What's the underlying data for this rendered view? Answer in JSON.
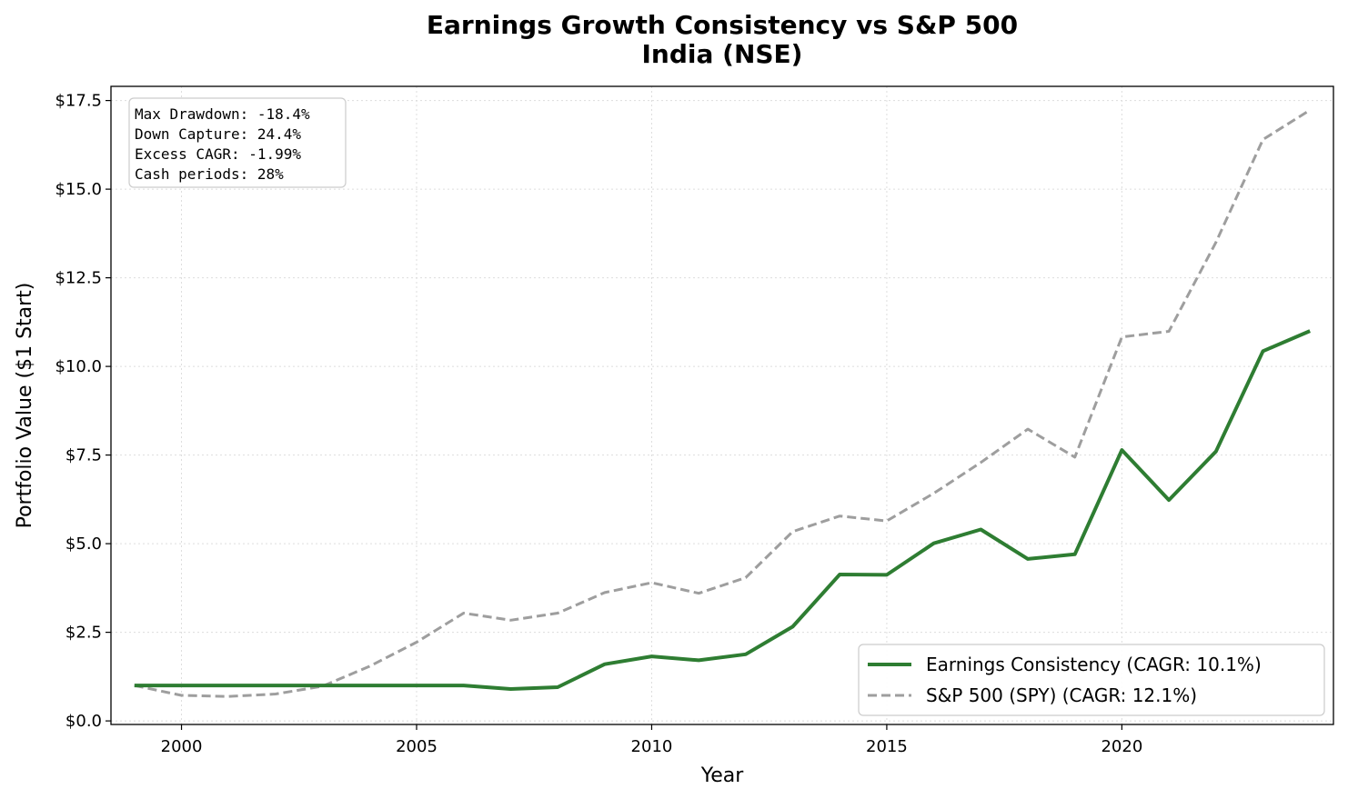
{
  "chart_data": {
    "type": "line",
    "title": "Earnings Growth Consistency vs S&P 500",
    "subtitle": "India (NSE)",
    "xlabel": "Year",
    "ylabel": "Portfolio Value ($1 Start)",
    "xlim": [
      1998.5,
      2024.5
    ],
    "ylim": [
      -0.1,
      17.9
    ],
    "x_ticks": [
      2000,
      2005,
      2010,
      2015,
      2020
    ],
    "x_tick_labels": [
      "2000",
      "2005",
      "2010",
      "2015",
      "2020"
    ],
    "y_ticks": [
      0,
      2.5,
      5,
      7.5,
      10,
      12.5,
      15,
      17.5
    ],
    "y_tick_labels": [
      "$0.0",
      "$2.5",
      "$5.0",
      "$7.5",
      "$10.0",
      "$12.5",
      "$15.0",
      "$17.5"
    ],
    "grid": true,
    "legend_position": "bottom-right",
    "x": [
      1999,
      2000,
      2001,
      2002,
      2003,
      2004,
      2005,
      2006,
      2007,
      2008,
      2009,
      2010,
      2011,
      2012,
      2013,
      2014,
      2015,
      2016,
      2017,
      2018,
      2019,
      2020,
      2021,
      2022,
      2023,
      2024
    ],
    "series": [
      {
        "name": "Earnings Consistency  (CAGR: 10.1%)",
        "color": "#2e7d32",
        "style": "solid",
        "values": [
          1.0,
          1.0,
          1.0,
          1.0,
          1.0,
          1.0,
          1.0,
          1.0,
          0.9,
          0.95,
          1.6,
          1.82,
          1.71,
          1.88,
          2.66,
          4.13,
          4.12,
          5.01,
          5.4,
          4.57,
          4.7,
          7.64,
          6.23,
          7.6,
          10.43,
          11.0
        ]
      },
      {
        "name": "S&P 500 (SPY)  (CAGR: 12.1%)",
        "color": "#9e9e9e",
        "style": "dashed",
        "values": [
          1.0,
          0.72,
          0.69,
          0.76,
          0.98,
          1.54,
          2.22,
          3.04,
          2.84,
          3.04,
          3.62,
          3.9,
          3.6,
          4.04,
          5.34,
          5.78,
          5.64,
          6.42,
          7.29,
          8.23,
          7.44,
          10.83,
          10.99,
          13.5,
          16.4,
          17.23
        ]
      }
    ],
    "annotation_lines": [
      "Max Drawdown: -18.4%",
      "Down Capture: 24.4%",
      "Excess CAGR: -1.99%",
      "Cash periods: 28%"
    ]
  }
}
